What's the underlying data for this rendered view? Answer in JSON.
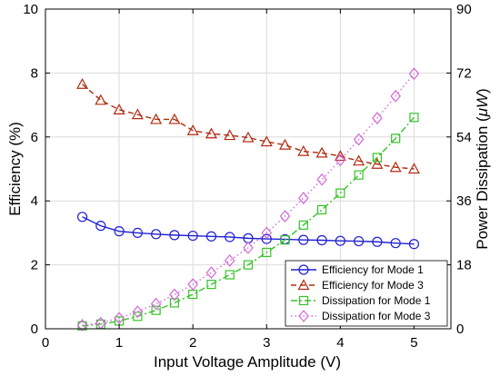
{
  "chart_data": {
    "type": "line",
    "xlabel": "Input Voltage Amplitude (V)",
    "ylabel_left": "Efficiency (%)",
    "ylabel_right": "Power Dissipation (",
    "ylabel_right_unit": "μW",
    "ylabel_right_close": ")",
    "xlim": [
      0,
      5.5
    ],
    "ylim_left": [
      0,
      10
    ],
    "ylim_right": [
      0,
      90
    ],
    "x_ticks": [
      "0",
      "1",
      "2",
      "3",
      "4",
      "5"
    ],
    "y_left_ticks": [
      "0",
      "2",
      "4",
      "6",
      "8",
      "10"
    ],
    "y_right_ticks": [
      "0",
      "18",
      "36",
      "54",
      "72",
      "90"
    ],
    "grid": true,
    "legend_position": "bottom-right",
    "x": [
      0.5,
      0.75,
      1.0,
      1.25,
      1.5,
      1.75,
      2.0,
      2.25,
      2.5,
      2.75,
      3.0,
      3.25,
      3.5,
      3.75,
      4.0,
      4.25,
      4.5,
      4.75,
      5.0
    ],
    "series": [
      {
        "name": "Efficiency for Mode 1",
        "axis": "left",
        "color": "#1f1fd1",
        "marker": "circle",
        "dash": "solid",
        "values": [
          3.5,
          3.22,
          3.05,
          3.0,
          2.96,
          2.93,
          2.91,
          2.89,
          2.87,
          2.83,
          2.81,
          2.8,
          2.78,
          2.77,
          2.75,
          2.74,
          2.72,
          2.68,
          2.65
        ]
      },
      {
        "name": "Efficiency for Mode 3",
        "axis": "left",
        "color": "#b22a10",
        "marker": "triangle",
        "dash": "dashed",
        "values": [
          7.65,
          7.15,
          6.85,
          6.7,
          6.55,
          6.55,
          6.2,
          6.1,
          6.05,
          5.98,
          5.85,
          5.75,
          5.55,
          5.5,
          5.4,
          5.25,
          5.15,
          5.05,
          5.0
        ]
      },
      {
        "name": "Dissipation for Mode 1",
        "axis": "right",
        "color": "#37c22a",
        "marker": "square",
        "dash": "dashdot",
        "values": [
          0.8,
          1.3,
          2.2,
          3.5,
          5.2,
          7.3,
          9.7,
          12.5,
          15.2,
          18.0,
          21.5,
          25.0,
          29.2,
          33.5,
          38.2,
          43.3,
          48.2,
          53.6,
          59.5
        ]
      },
      {
        "name": "Dissipation for Mode 3",
        "axis": "right",
        "color": "#d268d8",
        "marker": "diamond",
        "dash": "dotted",
        "values": [
          1.0,
          1.6,
          3.0,
          4.8,
          7.0,
          9.6,
          12.5,
          15.8,
          19.2,
          22.8,
          27.0,
          31.7,
          36.8,
          42.0,
          47.5,
          53.3,
          59.3,
          65.5,
          71.8
        ]
      }
    ]
  }
}
